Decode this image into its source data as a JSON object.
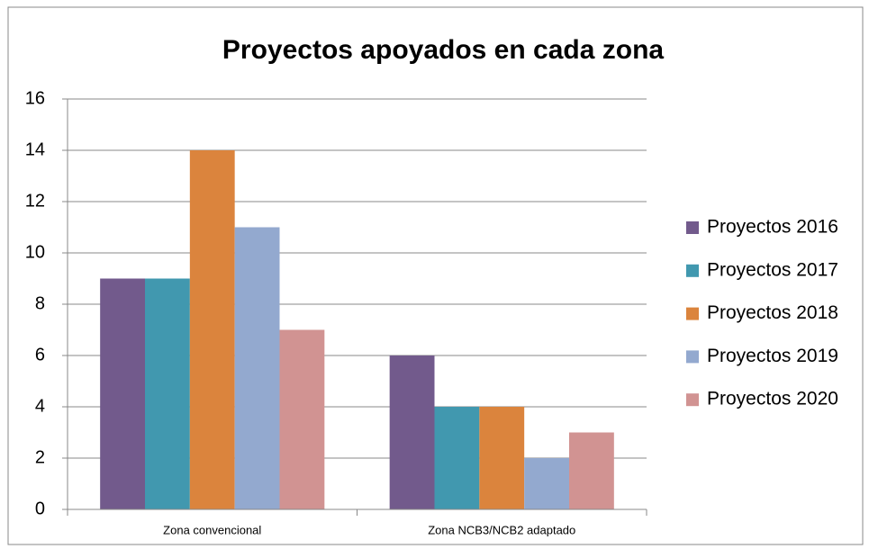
{
  "chart_data": {
    "type": "bar",
    "title": "Proyectos apoyados en cada zona",
    "categories": [
      "Zona convencional",
      "Zona NCB3/NCB2 adaptado"
    ],
    "series": [
      {
        "name": "Proyectos 2016",
        "color": "#725a8c",
        "values": [
          9,
          6
        ]
      },
      {
        "name": "Proyectos 2017",
        "color": "#4198af",
        "values": [
          9,
          4
        ]
      },
      {
        "name": "Proyectos 2018",
        "color": "#db843d",
        "values": [
          14,
          4
        ]
      },
      {
        "name": "Proyectos 2019",
        "color": "#93a9cf",
        "values": [
          11,
          2
        ]
      },
      {
        "name": "Proyectos 2020",
        "color": "#d19392",
        "values": [
          7,
          3
        ]
      }
    ],
    "ylim": [
      0,
      16
    ],
    "yticks": [
      0,
      2,
      4,
      6,
      8,
      10,
      12,
      14,
      16
    ],
    "grid": true,
    "legend": "right"
  }
}
